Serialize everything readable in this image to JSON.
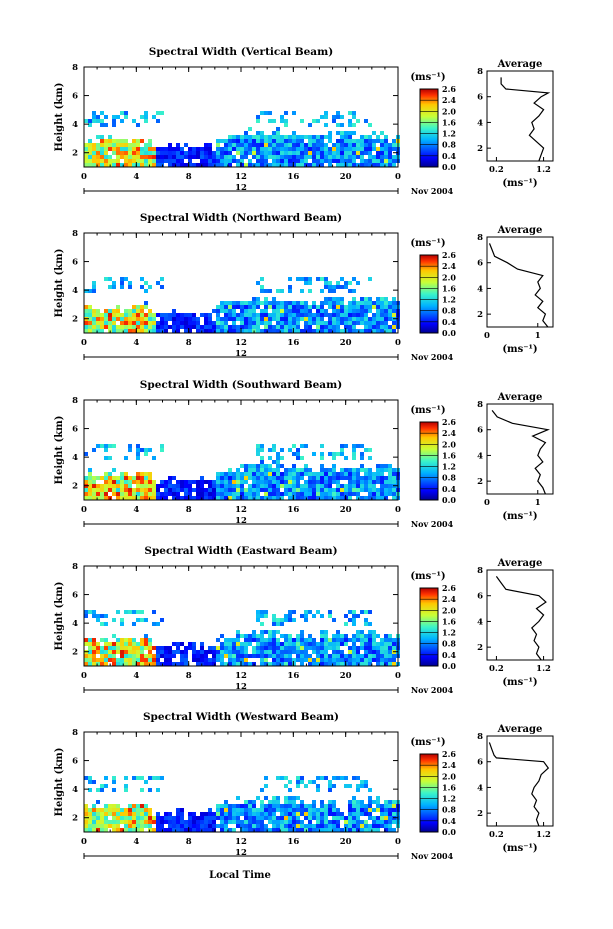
{
  "figure": {
    "xlabel": "Local Time",
    "x_ticks": [
      "0",
      "4",
      "8",
      "12",
      "16",
      "20",
      "0"
    ],
    "sub_tick": "12",
    "date_label": "Nov 2004",
    "ylabel": "Height (km)",
    "y_ticks": [
      "2",
      "4",
      "6",
      "8"
    ],
    "unit_label": "(ms⁻¹)",
    "colorbar_ticks": [
      "2.6",
      "2.4",
      "2.0",
      "1.6",
      "1.2",
      "0.8",
      "0.4",
      "0.0"
    ],
    "avg_title": "Average",
    "avg_xlabel": "(ms⁻¹)"
  },
  "chart_data": [
    {
      "type": "heatmap",
      "title": "Spectral Width (Vertical Beam)",
      "xlabel": "",
      "ylabel": "Height (km)",
      "xlim": [
        0,
        24
      ],
      "ylim": [
        1,
        8
      ],
      "colorbar_range": [
        0.0,
        2.8
      ],
      "profile": {
        "x_ticks": [
          "0.2",
          "1.2"
        ],
        "xlim": [
          0.0,
          1.4
        ],
        "height": [
          1.0,
          1.5,
          2.0,
          2.5,
          3.0,
          3.5,
          4.0,
          4.5,
          5.0,
          5.5,
          6.0,
          6.3,
          6.6,
          7.0,
          7.5
        ],
        "width": [
          1.1,
          1.15,
          1.2,
          1.05,
          0.9,
          1.0,
          0.95,
          1.1,
          1.2,
          1.0,
          1.15,
          1.3,
          0.4,
          0.3,
          0.3
        ]
      }
    },
    {
      "type": "heatmap",
      "title": "Spectral Width (Northward Beam)",
      "xlabel": "",
      "ylabel": "Height (km)",
      "xlim": [
        0,
        24
      ],
      "ylim": [
        1,
        8
      ],
      "colorbar_range": [
        0.0,
        2.8
      ],
      "profile": {
        "x_ticks": [
          "0",
          "1"
        ],
        "xlim": [
          0.0,
          1.3
        ],
        "height": [
          1.0,
          1.5,
          2.0,
          2.5,
          3.0,
          3.5,
          4.0,
          4.5,
          5.0,
          5.5,
          6.0,
          6.5,
          7.0,
          7.5
        ],
        "width": [
          1.2,
          1.1,
          1.15,
          1.0,
          1.1,
          0.95,
          1.05,
          1.0,
          1.1,
          0.6,
          0.4,
          0.15,
          0.1,
          0.05
        ]
      }
    },
    {
      "type": "heatmap",
      "title": "Spectral Width (Southward Beam)",
      "xlabel": "",
      "ylabel": "Height (km)",
      "xlim": [
        0,
        24
      ],
      "ylim": [
        1,
        8
      ],
      "colorbar_range": [
        0.0,
        2.6
      ],
      "profile": {
        "x_ticks": [
          "0",
          "1"
        ],
        "xlim": [
          0.0,
          1.3
        ],
        "height": [
          1.0,
          1.5,
          2.0,
          2.5,
          3.0,
          3.5,
          4.0,
          4.5,
          5.0,
          5.5,
          6.0,
          6.5,
          7.0,
          7.5
        ],
        "width": [
          1.15,
          1.1,
          1.0,
          1.05,
          0.95,
          1.1,
          1.0,
          1.05,
          1.15,
          0.9,
          1.2,
          0.5,
          0.2,
          0.1
        ]
      }
    },
    {
      "type": "heatmap",
      "title": "Spectral Width (Eastward Beam)",
      "xlabel": "",
      "ylabel": "Height (km)",
      "xlim": [
        0,
        24
      ],
      "ylim": [
        1,
        8
      ],
      "colorbar_range": [
        0.0,
        2.8
      ],
      "profile": {
        "x_ticks": [
          "0.2",
          "1.2"
        ],
        "xlim": [
          0.0,
          1.4
        ],
        "height": [
          1.0,
          1.5,
          2.0,
          2.5,
          3.0,
          3.5,
          4.0,
          4.5,
          5.0,
          5.5,
          6.0,
          6.5,
          7.0,
          7.5
        ],
        "width": [
          1.15,
          1.05,
          1.1,
          1.0,
          1.05,
          0.95,
          1.1,
          1.2,
          1.05,
          1.25,
          1.1,
          0.4,
          0.3,
          0.2
        ]
      }
    },
    {
      "type": "heatmap",
      "title": "Spectral Width (Westward Beam)",
      "xlabel": "Local Time",
      "ylabel": "Height (km)",
      "xlim": [
        0,
        24
      ],
      "ylim": [
        1,
        8
      ],
      "colorbar_range": [
        0.0,
        2.6
      ],
      "profile": {
        "x_ticks": [
          "0.2",
          "1.2"
        ],
        "xlim": [
          0.0,
          1.4
        ],
        "height": [
          1.0,
          1.5,
          2.0,
          2.5,
          3.0,
          3.5,
          4.0,
          4.5,
          5.0,
          5.5,
          6.0,
          6.3,
          6.5,
          7.0,
          7.5
        ],
        "width": [
          1.1,
          1.05,
          1.1,
          1.0,
          1.05,
          0.95,
          1.0,
          1.1,
          1.15,
          1.3,
          1.2,
          0.2,
          0.15,
          0.1,
          0.05
        ]
      }
    }
  ]
}
